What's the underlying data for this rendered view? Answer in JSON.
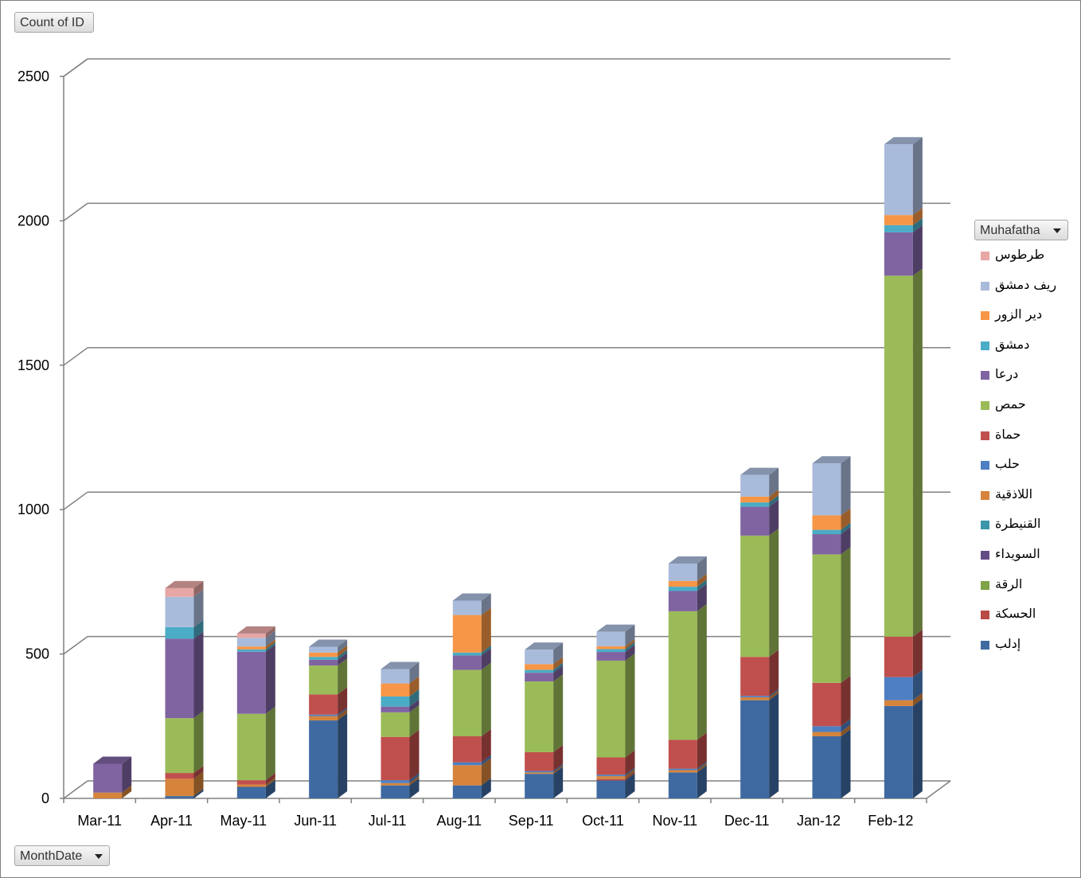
{
  "buttons": {
    "value_field": "Count of ID",
    "legend_field": "Muhafatha",
    "axis_field": "MonthDate"
  },
  "chart_data": {
    "type": "bar",
    "stacked": true,
    "three_d": true,
    "categories": [
      "Mar-11",
      "Apr-11",
      "May-11",
      "Jun-11",
      "Jul-11",
      "Aug-11",
      "Sep-11",
      "Oct-11",
      "Nov-11",
      "Dec-11",
      "Jan-12",
      "Feb-12"
    ],
    "y_ticks": [
      "0",
      "500",
      "1000",
      "1500",
      "2000",
      "2500"
    ],
    "ylim": [
      0,
      2500
    ],
    "grid": true,
    "legend_position": "right",
    "series": [
      {
        "name": "إدلب",
        "color": "#3f6aa1",
        "values": [
          0,
          8,
          40,
          270,
          45,
          45,
          85,
          62,
          90,
          340,
          215,
          320
        ]
      },
      {
        "name": "الحسكة",
        "color": "#b94a48",
        "values": [
          0,
          0,
          0,
          0,
          0,
          0,
          0,
          5,
          0,
          0,
          0,
          0
        ]
      },
      {
        "name": "الرقة",
        "color": "#7ea346",
        "values": [
          0,
          0,
          0,
          0,
          0,
          0,
          0,
          0,
          0,
          0,
          0,
          0
        ]
      },
      {
        "name": "السويداء",
        "color": "#634b86",
        "values": [
          0,
          0,
          0,
          0,
          0,
          0,
          0,
          0,
          0,
          0,
          0,
          0
        ]
      },
      {
        "name": "القنيطرة",
        "color": "#3b96ab",
        "values": [
          0,
          0,
          0,
          0,
          0,
          0,
          0,
          0,
          0,
          0,
          0,
          0
        ]
      },
      {
        "name": "اللاذقية",
        "color": "#d6843c",
        "values": [
          20,
          60,
          8,
          15,
          8,
          70,
          5,
          10,
          8,
          10,
          15,
          20
        ]
      },
      {
        "name": "حلب",
        "color": "#4d7fc2",
        "values": [
          0,
          0,
          0,
          5,
          10,
          10,
          5,
          5,
          5,
          5,
          20,
          80
        ]
      },
      {
        "name": "حماة",
        "color": "#c0504d",
        "values": [
          0,
          20,
          15,
          70,
          150,
          90,
          65,
          60,
          100,
          135,
          150,
          140
        ]
      },
      {
        "name": "حمص",
        "color": "#9bbb59",
        "values": [
          0,
          190,
          230,
          100,
          85,
          230,
          245,
          335,
          445,
          420,
          445,
          1250
        ]
      },
      {
        "name": "درعا",
        "color": "#8064a2",
        "values": [
          100,
          275,
          215,
          20,
          20,
          50,
          30,
          30,
          70,
          100,
          70,
          150
        ]
      },
      {
        "name": "دمشق",
        "color": "#4bacc6",
        "values": [
          0,
          40,
          8,
          10,
          35,
          10,
          10,
          10,
          15,
          15,
          15,
          25
        ]
      },
      {
        "name": "دير الزور",
        "color": "#f79646",
        "values": [
          0,
          0,
          10,
          15,
          45,
          130,
          20,
          10,
          20,
          20,
          50,
          35
        ]
      },
      {
        "name": "ريف دمشق",
        "color": "#a9bbdb",
        "values": [
          0,
          105,
          30,
          20,
          50,
          50,
          50,
          50,
          60,
          75,
          180,
          245
        ]
      },
      {
        "name": "طرطوس",
        "color": "#e6a7a5",
        "values": [
          0,
          30,
          15,
          0,
          0,
          0,
          0,
          0,
          0,
          0,
          0,
          0
        ]
      }
    ]
  }
}
